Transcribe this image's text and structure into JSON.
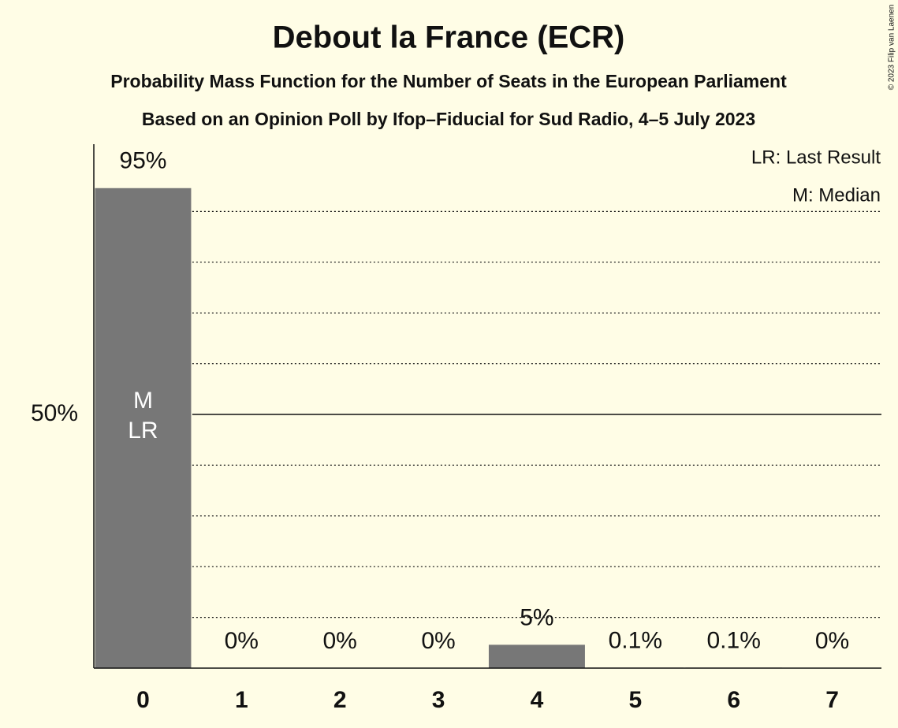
{
  "chart_data": {
    "type": "bar",
    "title": "Debout la France (ECR)",
    "subtitle": "Probability Mass Function for the Number of Seats in the European Parliament",
    "source": "Based on an Opinion Poll by Ifop–Fiducial for Sud Radio, 4–5 July 2023",
    "copyright": "© 2023 Filip van Laenen",
    "categories": [
      "0",
      "1",
      "2",
      "3",
      "4",
      "5",
      "6",
      "7"
    ],
    "values": [
      94.6,
      0,
      0,
      0,
      4.6,
      0.1,
      0.1,
      0
    ],
    "value_labels": [
      "95%",
      "0%",
      "0%",
      "0%",
      "5%",
      "0.1%",
      "0.1%",
      "0%"
    ],
    "bar_annotations": [
      "M",
      "LR"
    ],
    "legend": [
      "LR: Last Result",
      "M: Median"
    ],
    "color": "#777777",
    "ylim": [
      0,
      100
    ],
    "yticks": [
      {
        "value": 50,
        "label": "50%"
      }
    ],
    "grid": [
      10,
      20,
      30,
      40,
      60,
      70,
      80,
      90
    ]
  }
}
